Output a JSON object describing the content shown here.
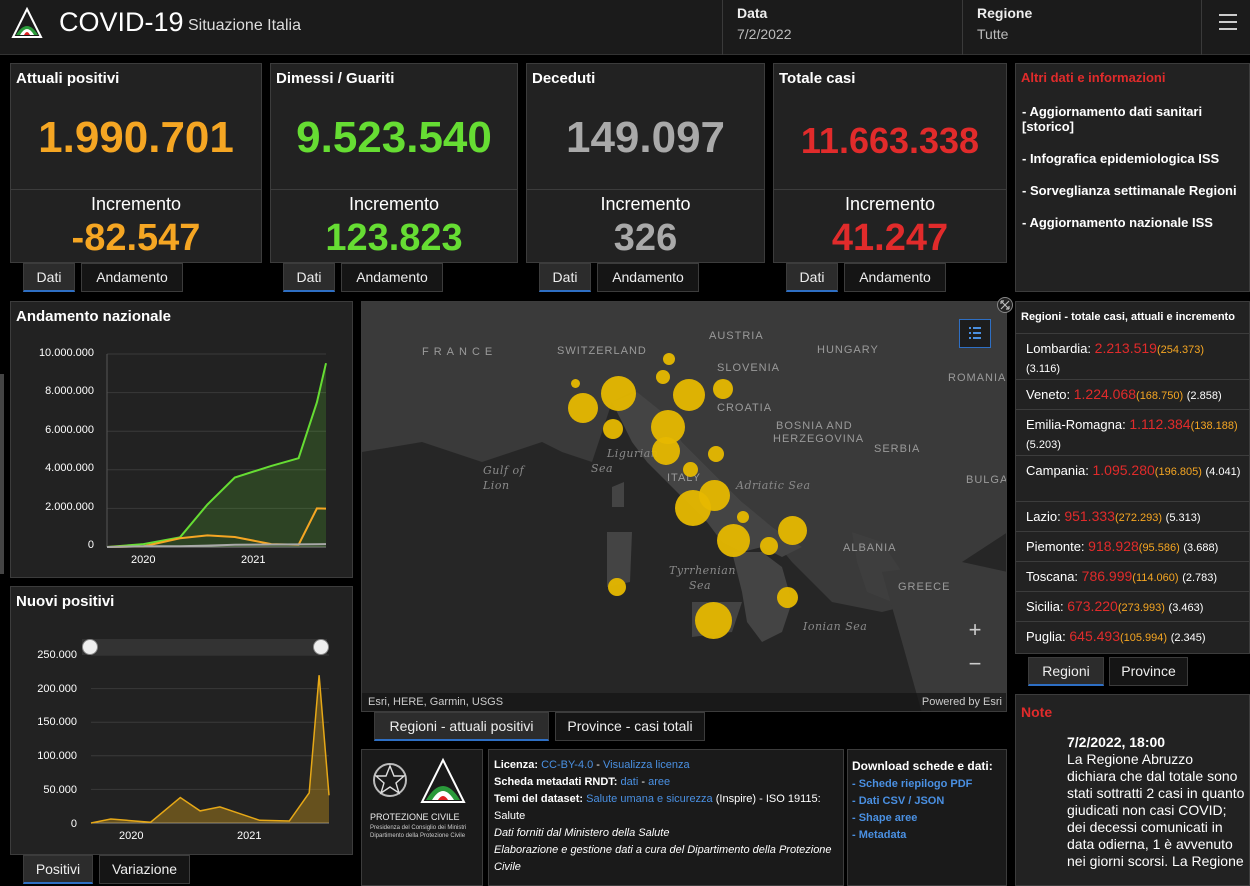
{
  "header": {
    "app_title": "COVID-19",
    "app_subtitle": "Situazione Italia",
    "data_label": "Data",
    "data_value": "7/2/2022",
    "regione_label": "Regione",
    "regione_value": "Tutte"
  },
  "kpis": [
    {
      "title": "Attuali positivi",
      "value": "1.990.701",
      "inc_label": "Incremento",
      "inc": "-82.547",
      "color": "#f5a623"
    },
    {
      "title": "Dimessi / Guariti",
      "value": "9.523.540",
      "inc_label": "Incremento",
      "inc": "123.823",
      "color": "#66dd33"
    },
    {
      "title": "Deceduti",
      "value": "149.097",
      "inc_label": "Incremento",
      "inc": "326",
      "color": "#a9a9a9"
    },
    {
      "title": "Totale casi",
      "value": "11.663.338",
      "inc_label": "Incremento",
      "inc": "41.247",
      "color": "#e12b2b"
    }
  ],
  "kpi_tabs": {
    "dati": "Dati",
    "andamento": "Andamento"
  },
  "info": {
    "title": "Altri dati e informazioni",
    "links": [
      "- Aggiornamento dati sanitari [storico]",
      "- Infografica epidemiologica ISS",
      "- Sorveglianza settimanale Regioni",
      "- Aggiornamento nazionale ISS"
    ]
  },
  "regions_panel": {
    "title": "Regioni - totale casi, attuali e incremento",
    "rows": [
      {
        "name": "Lombardia:",
        "total": "2.213.519",
        "current": "(254.373)",
        "new": "(3.116)"
      },
      {
        "name": "Veneto:",
        "total": "1.224.068",
        "current": "(168.750)",
        "new": "(2.858)"
      },
      {
        "name": "Emilia-Romagna:",
        "total": "1.112.384",
        "current": "(138.188)",
        "new": "(5.203)"
      },
      {
        "name": "Campania:",
        "total": "1.095.280",
        "current": "(196.805)",
        "new": "(4.041)"
      },
      {
        "name": "Lazio:",
        "total": "951.333",
        "current": "(272.293)",
        "new": "(5.313)"
      },
      {
        "name": "Piemonte:",
        "total": "918.928",
        "current": "(95.586)",
        "new": "(3.688)"
      },
      {
        "name": "Toscana:",
        "total": "786.999",
        "current": "(114.060)",
        "new": "(2.783)"
      },
      {
        "name": "Sicilia:",
        "total": "673.220",
        "current": "(273.993)",
        "new": "(3.463)"
      },
      {
        "name": "Puglia:",
        "total": "645.493",
        "current": "(105.994)",
        "new": "(2.345)"
      }
    ],
    "tab_regioni": "Regioni",
    "tab_province": "Province"
  },
  "map": {
    "labels": [
      "FRANCE",
      "SWITZERLAND",
      "AUSTRIA",
      "HUNGARY",
      "SLOVENIA",
      "ROMANIA",
      "CROATIA",
      "BOSNIA AND",
      "HERZEGOVINA",
      "SERBIA",
      "BULGAR",
      "ITALY",
      "ALBANIA",
      "GREECE"
    ],
    "seas": [
      "Ligurian",
      "Sea",
      "Gulf of",
      "Lion",
      "Adriatic Sea",
      "Tyrrhenian",
      "Sea",
      "Ionian Sea"
    ],
    "attribution": "Esri, HERE, Garmin, USGS",
    "powered": "Powered by Esri",
    "zoom_in": "+",
    "zoom_out": "−",
    "tab_regioni": "Regioni - attuali positivi",
    "tab_province": "Province - casi totali"
  },
  "andamento_nazionale": {
    "title": "Andamento nazionale",
    "y_ticks": [
      "10.000.000",
      "8.000.000",
      "6.000.000",
      "4.000.000",
      "2.000.000",
      "0"
    ],
    "x_ticks": [
      "2020",
      "2021"
    ]
  },
  "nuovi_positivi": {
    "title": "Nuovi positivi",
    "y_ticks": [
      "250.000",
      "200.000",
      "150.000",
      "100.000",
      "50.000",
      "0"
    ],
    "x_ticks": [
      "2020",
      "2021"
    ],
    "tab_positivi": "Positivi",
    "tab_variazione": "Variazione"
  },
  "footer": {
    "logo_caption": "PROTEZIONE CIVILE",
    "logo_sub1": "Presidenza del Consiglio dei Ministri",
    "logo_sub2": "Dipartimento della Protezione Civile",
    "licenza_label": "Licenza:",
    "licenza_link": "CC-BY-4.0",
    "licenza_sep": " - ",
    "licenza_link2": "Visualizza licenza",
    "scheda_label": "Scheda metadati RNDT:",
    "scheda_link1": "dati",
    "scheda_sep": " - ",
    "scheda_link2": "aree",
    "temi_label": "Temi del dataset:",
    "temi_link": "Salute umana e sicurezza",
    "temi_rest": "(Inspire) - ISO 19115:",
    "temi_rest2": "Salute",
    "fonte": "Dati forniti dal Ministero della Salute",
    "elab": "Elaborazione e gestione dati a cura del Dipartimento della Protezione Civile",
    "download_title": "Download schede e dati:",
    "downloads": [
      "- Schede riepilogo PDF",
      "- Dati CSV / JSON",
      "- Shape aree",
      "- Metadata"
    ]
  },
  "note": {
    "title": "Note",
    "date": "7/2/2022, 18:00",
    "text": "La Regione Abruzzo dichiara che dal totale sono stati sottratti 2 casi in quanto giudicati non casi COVID; dei decessi comunicati in data odierna, 1 è avvenuto nei giorni scorsi. La Regione"
  },
  "chart_data": [
    {
      "type": "line",
      "title": "Andamento nazionale",
      "x": [
        "2020-02",
        "2020-06",
        "2020-10",
        "2021-01",
        "2021-04",
        "2021-08",
        "2021-11",
        "2022-01",
        "2022-02"
      ],
      "series": [
        {
          "values": [
            0,
            150000,
            500000,
            2200000,
            3600000,
            4200000,
            4600000,
            7500000,
            9523540
          ],
          "color": "#66dd33"
        },
        {
          "values": [
            0,
            30000,
            450000,
            600000,
            520000,
            150000,
            120000,
            2000000,
            1990701
          ],
          "color": "#f5a623"
        },
        {
          "values": [
            0,
            34000,
            38000,
            75000,
            115000,
            128000,
            133000,
            140000,
            149097
          ],
          "color": "#a9a9a9"
        }
      ],
      "ylim": [
        0,
        10000000
      ]
    },
    {
      "type": "area",
      "title": "Nuovi positivi",
      "x": [
        "2020-02",
        "2020-04",
        "2020-08",
        "2020-11",
        "2021-01",
        "2021-03",
        "2021-07",
        "2021-10",
        "2021-12",
        "2022-01",
        "2022-02"
      ],
      "values": [
        0,
        6000,
        1000,
        38000,
        18000,
        24000,
        4000,
        3000,
        45000,
        220000,
        41247
      ],
      "ylim": [
        0,
        250000
      ],
      "color": "#e6a817"
    }
  ]
}
